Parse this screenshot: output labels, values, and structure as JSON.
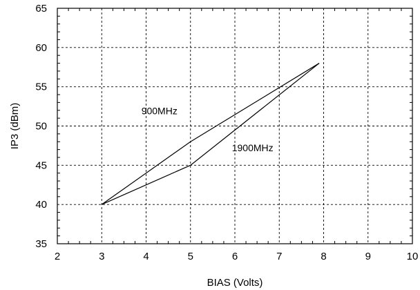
{
  "chart_data": {
    "type": "line",
    "title": "",
    "xlabel": "BIAS (Volts)",
    "ylabel": "IP3 (dBm)",
    "xlim": [
      2,
      10
    ],
    "ylim": [
      35,
      65
    ],
    "xticks": [
      2,
      3,
      4,
      5,
      6,
      7,
      8,
      9,
      10
    ],
    "yticks": [
      35,
      40,
      45,
      50,
      55,
      60,
      65
    ],
    "grid": true,
    "series": [
      {
        "name": "900MHz",
        "x": [
          3,
          5,
          7.9
        ],
        "y": [
          40,
          48,
          58
        ]
      },
      {
        "name": "1900MHz",
        "x": [
          3,
          5,
          7.9
        ],
        "y": [
          40,
          45,
          58
        ]
      }
    ]
  }
}
